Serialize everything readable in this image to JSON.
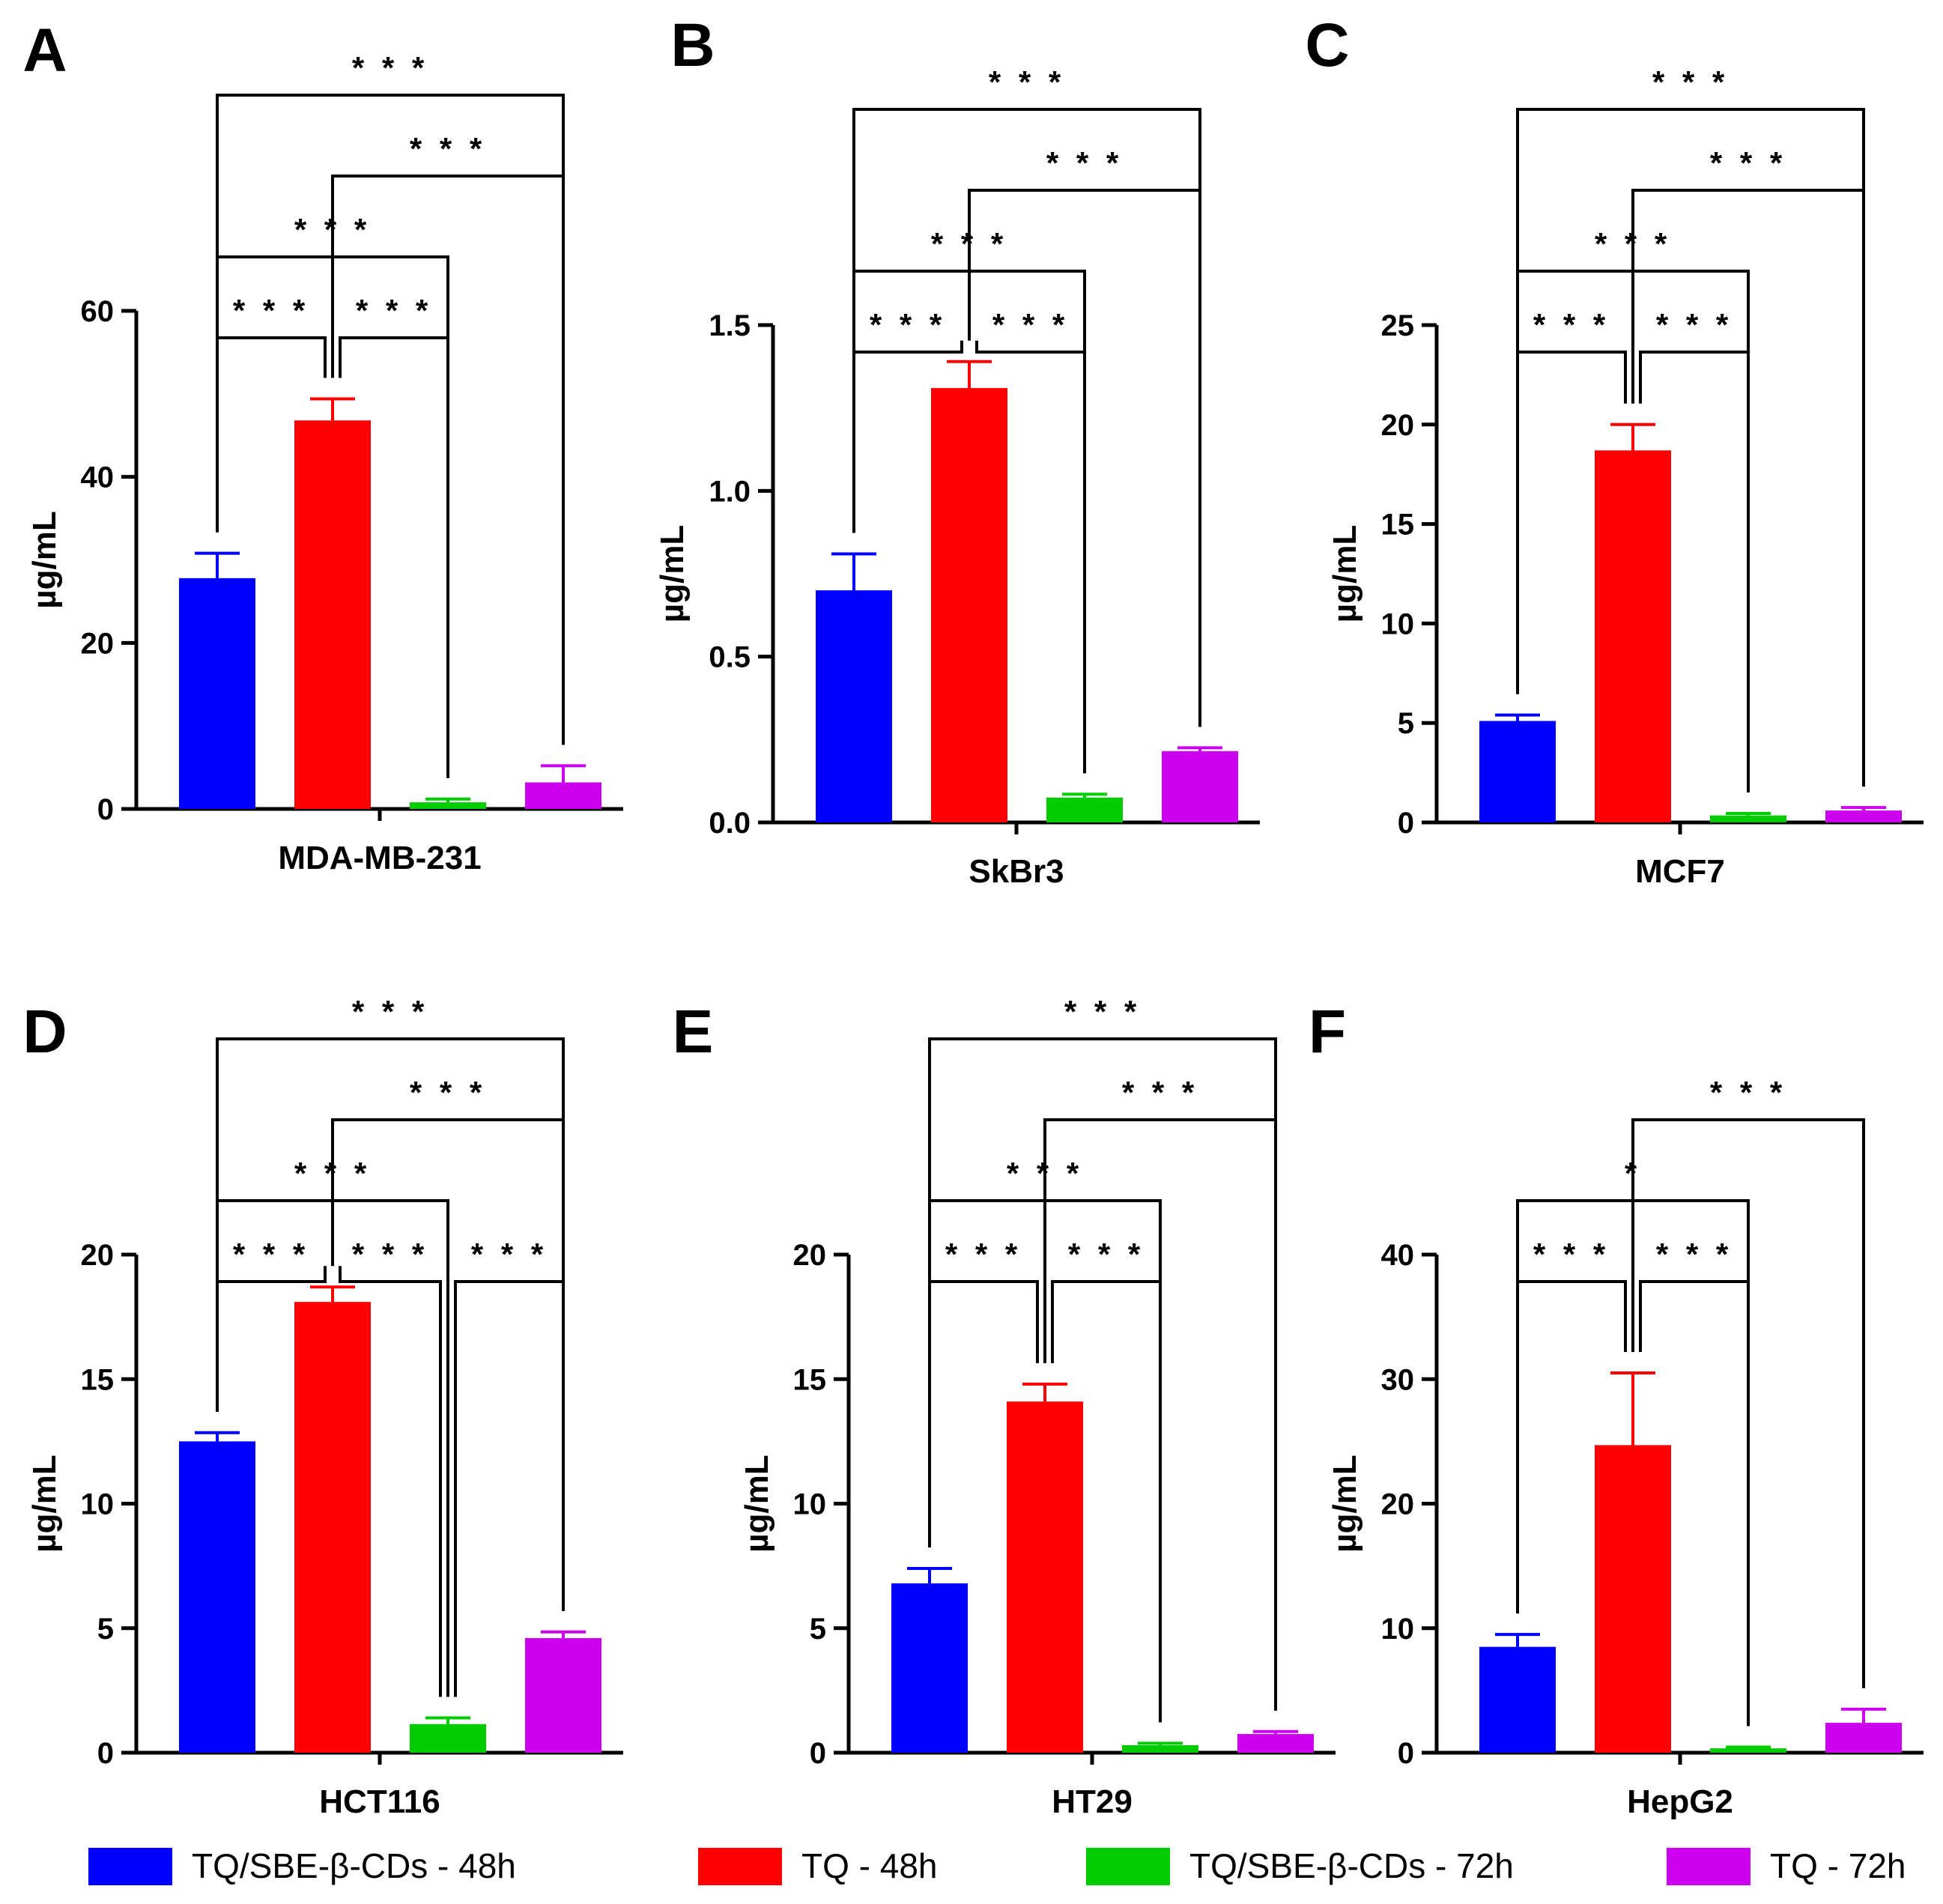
{
  "colors": {
    "series": [
      "#0000ff",
      "#ff0000",
      "#00cc00",
      "#cc00ee"
    ]
  },
  "legend": [
    {
      "label": "TQ/SBE-β-CDs - 48h",
      "color": "#0000ff"
    },
    {
      "label": "TQ - 48h",
      "color": "#ff0000"
    },
    {
      "label": "TQ/SBE-β-CDs - 72h",
      "color": "#00cc00"
    },
    {
      "label": "TQ - 72h",
      "color": "#cc00ee"
    }
  ],
  "chart_data": [
    {
      "panel": "A",
      "type": "bar",
      "xlabel": "MDA-MB-231",
      "ylabel": "µg/mL",
      "ylim": [
        0,
        60
      ],
      "ticks": [
        0,
        20,
        40,
        60
      ],
      "tick_labels": [
        "0",
        "20",
        "40",
        "60"
      ],
      "values": [
        27.8,
        46.8,
        0.8,
        3.2
      ],
      "errors": [
        3.0,
        2.6,
        0.4,
        2.0
      ],
      "comparisons": [
        {
          "a": 0,
          "b": 1,
          "label": "* * *"
        },
        {
          "a": 1,
          "b": 2,
          "label": "* * *"
        },
        {
          "a": 0,
          "b": 2,
          "label": "* * *"
        },
        {
          "a": 1,
          "b": 3,
          "label": "* * *"
        },
        {
          "a": 0,
          "b": 3,
          "label": "* * *"
        }
      ]
    },
    {
      "panel": "B",
      "type": "bar",
      "xlabel": "SkBr3",
      "ylabel": "µg/mL",
      "ylim": [
        0,
        1.5
      ],
      "ticks": [
        0,
        0.5,
        1.0,
        1.5
      ],
      "tick_labels": [
        "0.0",
        "0.5",
        "1.0",
        "1.5"
      ],
      "values": [
        0.7,
        1.31,
        0.075,
        0.215
      ],
      "errors": [
        0.11,
        0.08,
        0.01,
        0.01
      ],
      "comparisons": [
        {
          "a": 0,
          "b": 1,
          "label": "* * *"
        },
        {
          "a": 1,
          "b": 2,
          "label": "* * *"
        },
        {
          "a": 0,
          "b": 2,
          "label": "* * *"
        },
        {
          "a": 1,
          "b": 3,
          "label": "* * *"
        },
        {
          "a": 0,
          "b": 3,
          "label": "* * *"
        }
      ]
    },
    {
      "panel": "C",
      "type": "bar",
      "xlabel": "MCF7",
      "ylabel": "µg/mL",
      "ylim": [
        0,
        25
      ],
      "ticks": [
        0,
        5,
        10,
        15,
        20,
        25
      ],
      "tick_labels": [
        "0",
        "5",
        "10",
        "15",
        "20",
        "25"
      ],
      "values": [
        5.1,
        18.7,
        0.35,
        0.6
      ],
      "errors": [
        0.3,
        1.3,
        0.1,
        0.15
      ],
      "comparisons": [
        {
          "a": 0,
          "b": 1,
          "label": "* * *"
        },
        {
          "a": 1,
          "b": 2,
          "label": "* * *"
        },
        {
          "a": 0,
          "b": 2,
          "label": "* * *"
        },
        {
          "a": 1,
          "b": 3,
          "label": "* * *"
        },
        {
          "a": 0,
          "b": 3,
          "label": "* * *"
        }
      ]
    },
    {
      "panel": "D",
      "type": "bar",
      "xlabel": "HCT116",
      "ylabel": "µg/mL",
      "ylim": [
        0,
        20
      ],
      "ticks": [
        0,
        5,
        10,
        15,
        20
      ],
      "tick_labels": [
        "0",
        "5",
        "10",
        "15",
        "20"
      ],
      "values": [
        12.5,
        18.1,
        1.15,
        4.6
      ],
      "errors": [
        0.35,
        0.6,
        0.25,
        0.25
      ],
      "comparisons": [
        {
          "a": 0,
          "b": 1,
          "label": "* * *"
        },
        {
          "a": 1,
          "b": 2,
          "label": "* * *"
        },
        {
          "a": 2,
          "b": 3,
          "label": "* * *"
        },
        {
          "a": 0,
          "b": 2,
          "label": "* * *"
        },
        {
          "a": 1,
          "b": 3,
          "label": "* * *"
        },
        {
          "a": 0,
          "b": 3,
          "label": "* * *"
        }
      ]
    },
    {
      "panel": "E",
      "type": "bar",
      "xlabel": "HT29",
      "ylabel": "µg/mL",
      "ylim": [
        0,
        20
      ],
      "ticks": [
        0,
        5,
        10,
        15,
        20
      ],
      "tick_labels": [
        "0",
        "5",
        "10",
        "15",
        "20"
      ],
      "values": [
        6.8,
        14.1,
        0.3,
        0.75
      ],
      "errors": [
        0.6,
        0.7,
        0.08,
        0.1
      ],
      "comparisons": [
        {
          "a": 0,
          "b": 1,
          "label": "* * *"
        },
        {
          "a": 1,
          "b": 2,
          "label": "* * *"
        },
        {
          "a": 0,
          "b": 2,
          "label": "* * *"
        },
        {
          "a": 1,
          "b": 3,
          "label": "* * *"
        },
        {
          "a": 0,
          "b": 3,
          "label": "* * *"
        }
      ]
    },
    {
      "panel": "F",
      "type": "bar",
      "xlabel": "HepG2",
      "ylabel": "µg/mL",
      "ylim": [
        0,
        40
      ],
      "ticks": [
        0,
        10,
        20,
        30,
        40
      ],
      "tick_labels": [
        "0",
        "10",
        "20",
        "30",
        "40"
      ],
      "values": [
        8.5,
        24.7,
        0.35,
        2.4
      ],
      "errors": [
        1.0,
        5.8,
        0.1,
        1.1
      ],
      "comparisons": [
        {
          "a": 0,
          "b": 1,
          "label": "* * *"
        },
        {
          "a": 1,
          "b": 2,
          "label": "* * *"
        },
        {
          "a": 0,
          "b": 2,
          "label": "*"
        },
        {
          "a": 1,
          "b": 3,
          "label": "* * *"
        }
      ]
    }
  ]
}
